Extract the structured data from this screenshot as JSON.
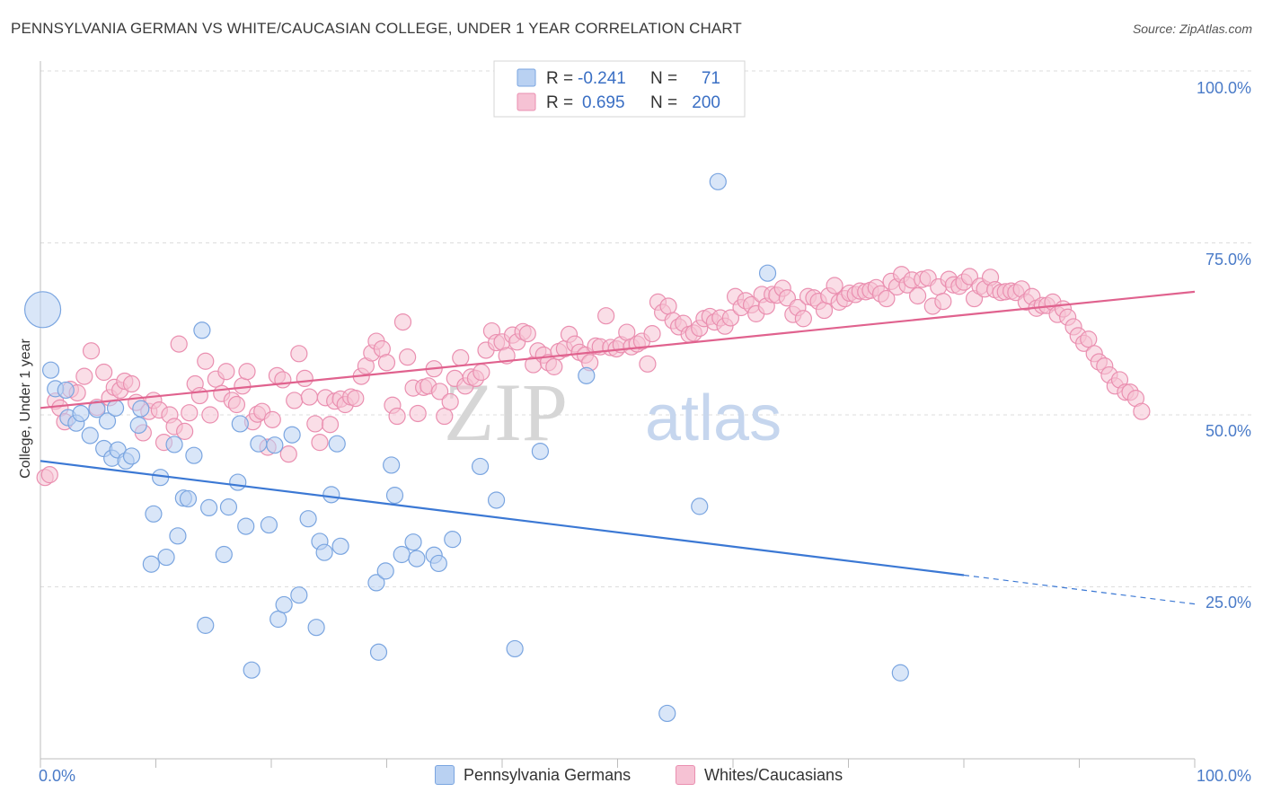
{
  "title": "PENNSYLVANIA GERMAN VS WHITE/CAUCASIAN COLLEGE, UNDER 1 YEAR CORRELATION CHART",
  "source": "Source: ZipAtlas.com",
  "watermark_zip": "ZIP",
  "watermark_atlas": "atlas",
  "legend": {
    "rows": [
      {
        "r_label": "R =",
        "r_value": "-0.241",
        "n_label": "N =",
        "n_value": "71",
        "color": "#7aa5e0",
        "fill": "#b9d1f2"
      },
      {
        "r_label": "R =",
        "r_value": "0.695",
        "n_label": "N =",
        "n_value": "200",
        "color": "#ea8fb0",
        "fill": "#f6c2d4"
      }
    ]
  },
  "bottom_legend": [
    {
      "label": "Pennsylvania Germans",
      "fill": "#b9d1f2",
      "stroke": "#7aa5e0"
    },
    {
      "label": "Whites/Caucasians",
      "fill": "#f6c2d4",
      "stroke": "#ea8fb0"
    }
  ],
  "chart_data": {
    "type": "scatter",
    "title": "PENNSYLVANIA GERMAN VS WHITE/CAUCASIAN COLLEGE, UNDER 1 YEAR CORRELATION CHART",
    "xlabel": "",
    "ylabel": "College, Under 1 year",
    "xlim": [
      0,
      100
    ],
    "ylim": [
      0,
      100
    ],
    "x_ticks": [
      "0.0%",
      "100.0%"
    ],
    "y_ticks": [
      "100.0%",
      "75.0%",
      "50.0%",
      "25.0%"
    ],
    "y_tick_values": [
      100,
      75,
      50,
      25
    ],
    "grid": true,
    "legend_position": "top-center",
    "series": [
      {
        "name": "Pennsylvania Germans",
        "color": "#7aa5e0",
        "fill": "#b9d1f2",
        "trend": {
          "x": [
            0,
            80,
            100
          ],
          "y": [
            43.3,
            26.7,
            22.5
          ],
          "solid_until_x": 80
        },
        "points": [
          [
            0.2,
            65.3,
            "big"
          ],
          [
            0.9,
            56.5
          ],
          [
            1.3,
            53.8
          ],
          [
            2.2,
            53.6
          ],
          [
            2.4,
            49.6
          ],
          [
            3.1,
            48.8
          ],
          [
            3.5,
            50.2
          ],
          [
            4.3,
            47.0
          ],
          [
            4.9,
            50.8
          ],
          [
            5.5,
            45.1
          ],
          [
            5.8,
            49.1
          ],
          [
            6.2,
            43.7
          ],
          [
            6.7,
            44.9
          ],
          [
            7.4,
            43.3
          ],
          [
            7.9,
            44.0
          ],
          [
            8.5,
            48.5
          ],
          [
            8.7,
            50.9
          ],
          [
            9.6,
            28.3
          ],
          [
            9.8,
            35.6
          ],
          [
            10.4,
            40.9
          ],
          [
            10.9,
            29.3
          ],
          [
            11.6,
            45.7
          ],
          [
            11.9,
            32.4
          ],
          [
            12.4,
            37.9
          ],
          [
            12.8,
            37.8
          ],
          [
            13.3,
            44.1
          ],
          [
            14.0,
            62.3
          ],
          [
            14.3,
            19.4
          ],
          [
            14.6,
            36.5
          ],
          [
            15.9,
            29.7
          ],
          [
            16.3,
            36.6
          ],
          [
            17.1,
            40.2
          ],
          [
            17.3,
            48.7
          ],
          [
            17.8,
            33.8
          ],
          [
            18.3,
            12.9
          ],
          [
            18.9,
            45.8
          ],
          [
            19.8,
            34.0
          ],
          [
            20.3,
            45.6
          ],
          [
            20.6,
            20.3
          ],
          [
            21.1,
            22.4
          ],
          [
            21.8,
            47.1
          ],
          [
            22.4,
            23.8
          ],
          [
            23.2,
            34.9
          ],
          [
            23.9,
            19.1
          ],
          [
            24.2,
            31.6
          ],
          [
            24.6,
            30.0
          ],
          [
            25.2,
            38.4
          ],
          [
            25.7,
            45.8
          ],
          [
            26.0,
            30.9
          ],
          [
            29.1,
            25.6
          ],
          [
            29.3,
            15.5
          ],
          [
            29.9,
            27.3
          ],
          [
            30.4,
            42.7
          ],
          [
            30.7,
            38.3
          ],
          [
            31.3,
            29.7
          ],
          [
            32.3,
            31.5
          ],
          [
            32.6,
            29.1
          ],
          [
            34.1,
            29.6
          ],
          [
            34.5,
            28.4
          ],
          [
            35.7,
            31.9
          ],
          [
            38.1,
            42.5
          ],
          [
            39.5,
            37.6
          ],
          [
            41.1,
            16.0
          ],
          [
            43.3,
            44.7
          ],
          [
            47.3,
            55.7
          ],
          [
            54.3,
            6.6
          ],
          [
            57.1,
            36.7
          ],
          [
            58.7,
            83.9
          ],
          [
            63.0,
            70.6
          ],
          [
            74.5,
            12.5
          ],
          [
            6.5,
            51.0
          ]
        ]
      },
      {
        "name": "Whites/Caucasians",
        "color": "#ea8fb0",
        "fill": "#f6c2d4",
        "trend": {
          "x": [
            0,
            100
          ],
          "y": [
            51.0,
            67.9
          ]
        },
        "points": [
          [
            0.4,
            40.9
          ],
          [
            0.8,
            41.3
          ],
          [
            1.3,
            52.0
          ],
          [
            1.7,
            51.0
          ],
          [
            2.1,
            49.0
          ],
          [
            2.6,
            53.7
          ],
          [
            3.2,
            53.2
          ],
          [
            3.8,
            55.6
          ],
          [
            4.4,
            59.3
          ],
          [
            4.9,
            51.1
          ],
          [
            5.5,
            56.2
          ],
          [
            6.0,
            52.5
          ],
          [
            6.4,
            54.0
          ],
          [
            6.9,
            53.6
          ],
          [
            7.3,
            54.9
          ],
          [
            7.9,
            54.5
          ],
          [
            8.3,
            51.8
          ],
          [
            8.9,
            47.4
          ],
          [
            9.4,
            50.5
          ],
          [
            9.8,
            52.1
          ],
          [
            10.3,
            50.7
          ],
          [
            10.7,
            46.0
          ],
          [
            11.2,
            50.0
          ],
          [
            11.6,
            48.3
          ],
          [
            12.0,
            60.3
          ],
          [
            12.5,
            47.6
          ],
          [
            12.9,
            50.3
          ],
          [
            13.4,
            54.5
          ],
          [
            13.8,
            52.8
          ],
          [
            14.3,
            57.8
          ],
          [
            14.7,
            50.0
          ],
          [
            15.2,
            55.2
          ],
          [
            15.7,
            53.1
          ],
          [
            16.1,
            56.3
          ],
          [
            16.6,
            52.1
          ],
          [
            17.0,
            51.5
          ],
          [
            17.5,
            54.2
          ],
          [
            17.9,
            56.3
          ],
          [
            18.4,
            49.0
          ],
          [
            18.8,
            50.1
          ],
          [
            19.2,
            50.5
          ],
          [
            19.7,
            45.3
          ],
          [
            20.1,
            49.3
          ],
          [
            20.5,
            55.7
          ],
          [
            21.0,
            55.1
          ],
          [
            21.5,
            44.3
          ],
          [
            22.0,
            52.1
          ],
          [
            22.4,
            58.9
          ],
          [
            22.9,
            55.3
          ],
          [
            23.3,
            52.6
          ],
          [
            23.8,
            48.7
          ],
          [
            24.2,
            46.0
          ],
          [
            24.7,
            52.5
          ],
          [
            25.1,
            48.6
          ],
          [
            25.5,
            52.0
          ],
          [
            26.0,
            52.3
          ],
          [
            26.4,
            51.5
          ],
          [
            26.9,
            52.6
          ],
          [
            27.3,
            52.4
          ],
          [
            27.8,
            55.6
          ],
          [
            28.2,
            57.1
          ],
          [
            28.7,
            59.0
          ],
          [
            29.1,
            60.7
          ],
          [
            29.6,
            59.6
          ],
          [
            30.0,
            57.6
          ],
          [
            30.5,
            51.4
          ],
          [
            30.9,
            49.8
          ],
          [
            31.4,
            63.5
          ],
          [
            31.8,
            58.4
          ],
          [
            32.3,
            53.9
          ],
          [
            32.7,
            50.2
          ],
          [
            33.2,
            54.0
          ],
          [
            33.6,
            54.2
          ],
          [
            34.1,
            56.7
          ],
          [
            34.6,
            53.4
          ],
          [
            35.0,
            49.8
          ],
          [
            35.5,
            51.9
          ],
          [
            35.9,
            55.3
          ],
          [
            36.4,
            58.3
          ],
          [
            36.8,
            54.2
          ],
          [
            37.3,
            55.5
          ],
          [
            37.7,
            55.3
          ],
          [
            38.2,
            56.2
          ],
          [
            38.6,
            59.4
          ],
          [
            39.1,
            62.2
          ],
          [
            39.5,
            60.5
          ],
          [
            40.0,
            60.6
          ],
          [
            40.4,
            58.6
          ],
          [
            40.9,
            61.6
          ],
          [
            41.3,
            60.6
          ],
          [
            41.8,
            62.1
          ],
          [
            42.2,
            61.8
          ],
          [
            42.7,
            57.3
          ],
          [
            43.1,
            59.3
          ],
          [
            43.6,
            58.7
          ],
          [
            44.0,
            57.6
          ],
          [
            44.5,
            57.0
          ],
          [
            44.9,
            59.2
          ],
          [
            45.4,
            59.6
          ],
          [
            45.8,
            61.7
          ],
          [
            46.3,
            60.3
          ],
          [
            46.7,
            59.1
          ],
          [
            47.2,
            58.7
          ],
          [
            47.6,
            57.6
          ],
          [
            48.1,
            60.0
          ],
          [
            48.5,
            59.9
          ],
          [
            49.0,
            64.4
          ],
          [
            49.4,
            59.8
          ],
          [
            49.9,
            59.6
          ],
          [
            50.3,
            60.2
          ],
          [
            50.8,
            62.0
          ],
          [
            51.2,
            59.9
          ],
          [
            51.7,
            60.3
          ],
          [
            52.1,
            60.7
          ],
          [
            52.6,
            57.4
          ],
          [
            53.0,
            61.8
          ],
          [
            53.5,
            66.4
          ],
          [
            53.9,
            64.9
          ],
          [
            54.4,
            65.8
          ],
          [
            54.8,
            63.7
          ],
          [
            55.3,
            62.8
          ],
          [
            55.7,
            63.3
          ],
          [
            56.2,
            61.7
          ],
          [
            56.6,
            61.9
          ],
          [
            57.1,
            62.6
          ],
          [
            57.5,
            64.0
          ],
          [
            58.0,
            64.3
          ],
          [
            58.4,
            63.5
          ],
          [
            58.9,
            64.1
          ],
          [
            59.3,
            62.9
          ],
          [
            59.8,
            64.1
          ],
          [
            60.2,
            67.2
          ],
          [
            60.7,
            65.6
          ],
          [
            61.1,
            66.6
          ],
          [
            61.6,
            66.0
          ],
          [
            62.0,
            64.7
          ],
          [
            62.5,
            67.5
          ],
          [
            62.9,
            65.8
          ],
          [
            63.4,
            67.5
          ],
          [
            63.8,
            67.4
          ],
          [
            64.3,
            68.4
          ],
          [
            64.7,
            67.0
          ],
          [
            65.2,
            64.6
          ],
          [
            65.6,
            65.6
          ],
          [
            66.1,
            64.0
          ],
          [
            66.5,
            67.2
          ],
          [
            67.0,
            67.0
          ],
          [
            67.4,
            66.5
          ],
          [
            67.9,
            65.2
          ],
          [
            68.3,
            67.3
          ],
          [
            68.8,
            68.8
          ],
          [
            69.2,
            66.4
          ],
          [
            69.7,
            66.9
          ],
          [
            70.1,
            67.7
          ],
          [
            70.6,
            67.5
          ],
          [
            71.0,
            68.0
          ],
          [
            71.5,
            67.9
          ],
          [
            71.9,
            68.1
          ],
          [
            72.4,
            68.5
          ],
          [
            72.8,
            67.6
          ],
          [
            73.3,
            66.9
          ],
          [
            73.7,
            69.4
          ],
          [
            74.2,
            68.6
          ],
          [
            74.6,
            70.4
          ],
          [
            75.1,
            68.9
          ],
          [
            75.5,
            69.6
          ],
          [
            76.0,
            67.3
          ],
          [
            76.4,
            69.7
          ],
          [
            76.9,
            69.9
          ],
          [
            77.3,
            65.8
          ],
          [
            77.8,
            68.6
          ],
          [
            78.2,
            66.5
          ],
          [
            78.7,
            69.7
          ],
          [
            79.1,
            68.9
          ],
          [
            79.6,
            68.7
          ],
          [
            80.0,
            69.3
          ],
          [
            80.5,
            70.1
          ],
          [
            80.9,
            66.9
          ],
          [
            81.4,
            68.7
          ],
          [
            81.8,
            68.3
          ],
          [
            82.3,
            70.0
          ],
          [
            82.7,
            68.2
          ],
          [
            83.2,
            67.8
          ],
          [
            83.6,
            67.9
          ],
          [
            84.1,
            68.0
          ],
          [
            84.5,
            67.8
          ],
          [
            85.0,
            68.3
          ],
          [
            85.4,
            66.4
          ],
          [
            85.9,
            67.2
          ],
          [
            86.3,
            65.5
          ],
          [
            86.8,
            65.9
          ],
          [
            87.2,
            65.9
          ],
          [
            87.7,
            66.4
          ],
          [
            88.1,
            64.6
          ],
          [
            88.6,
            65.4
          ],
          [
            89.0,
            64.2
          ],
          [
            89.5,
            62.8
          ],
          [
            89.9,
            61.5
          ],
          [
            90.4,
            60.4
          ],
          [
            90.8,
            61.0
          ],
          [
            91.3,
            58.9
          ],
          [
            91.7,
            57.7
          ],
          [
            92.2,
            57.1
          ],
          [
            92.6,
            55.8
          ],
          [
            93.1,
            54.2
          ],
          [
            93.5,
            55.1
          ],
          [
            94.0,
            53.3
          ],
          [
            94.4,
            53.3
          ],
          [
            94.9,
            52.4
          ],
          [
            95.4,
            50.5
          ]
        ]
      }
    ]
  }
}
